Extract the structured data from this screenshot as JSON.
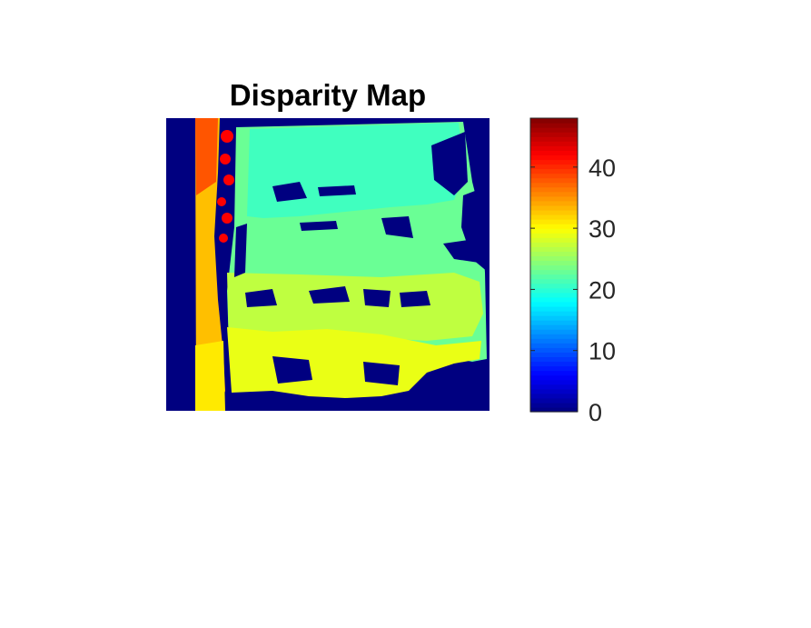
{
  "chart_data": {
    "type": "heatmap",
    "title": "Disparity Map",
    "colormap": "jet",
    "colorbar": {
      "min": 0,
      "max": 48,
      "ticks": [
        0,
        10,
        20,
        30,
        40
      ],
      "tick_labels": [
        "0",
        "10",
        "20",
        "30",
        "40"
      ],
      "location": "right"
    },
    "axes_visible": false,
    "regions": [
      {
        "name": "invalid-background",
        "value": 0
      },
      {
        "name": "near-pole",
        "value": 33
      },
      {
        "name": "pole-top-edge",
        "value": 38
      },
      {
        "name": "outlier-blobs",
        "value": 42
      },
      {
        "name": "far-background-upper",
        "value": 21
      },
      {
        "name": "mid-background",
        "value": 23
      },
      {
        "name": "lower-foreground",
        "value": 27
      },
      {
        "name": "bottom-foreground",
        "value": 29
      }
    ]
  },
  "colors": {
    "colormap_low": "#00008f",
    "colormap_high": "#800000"
  }
}
